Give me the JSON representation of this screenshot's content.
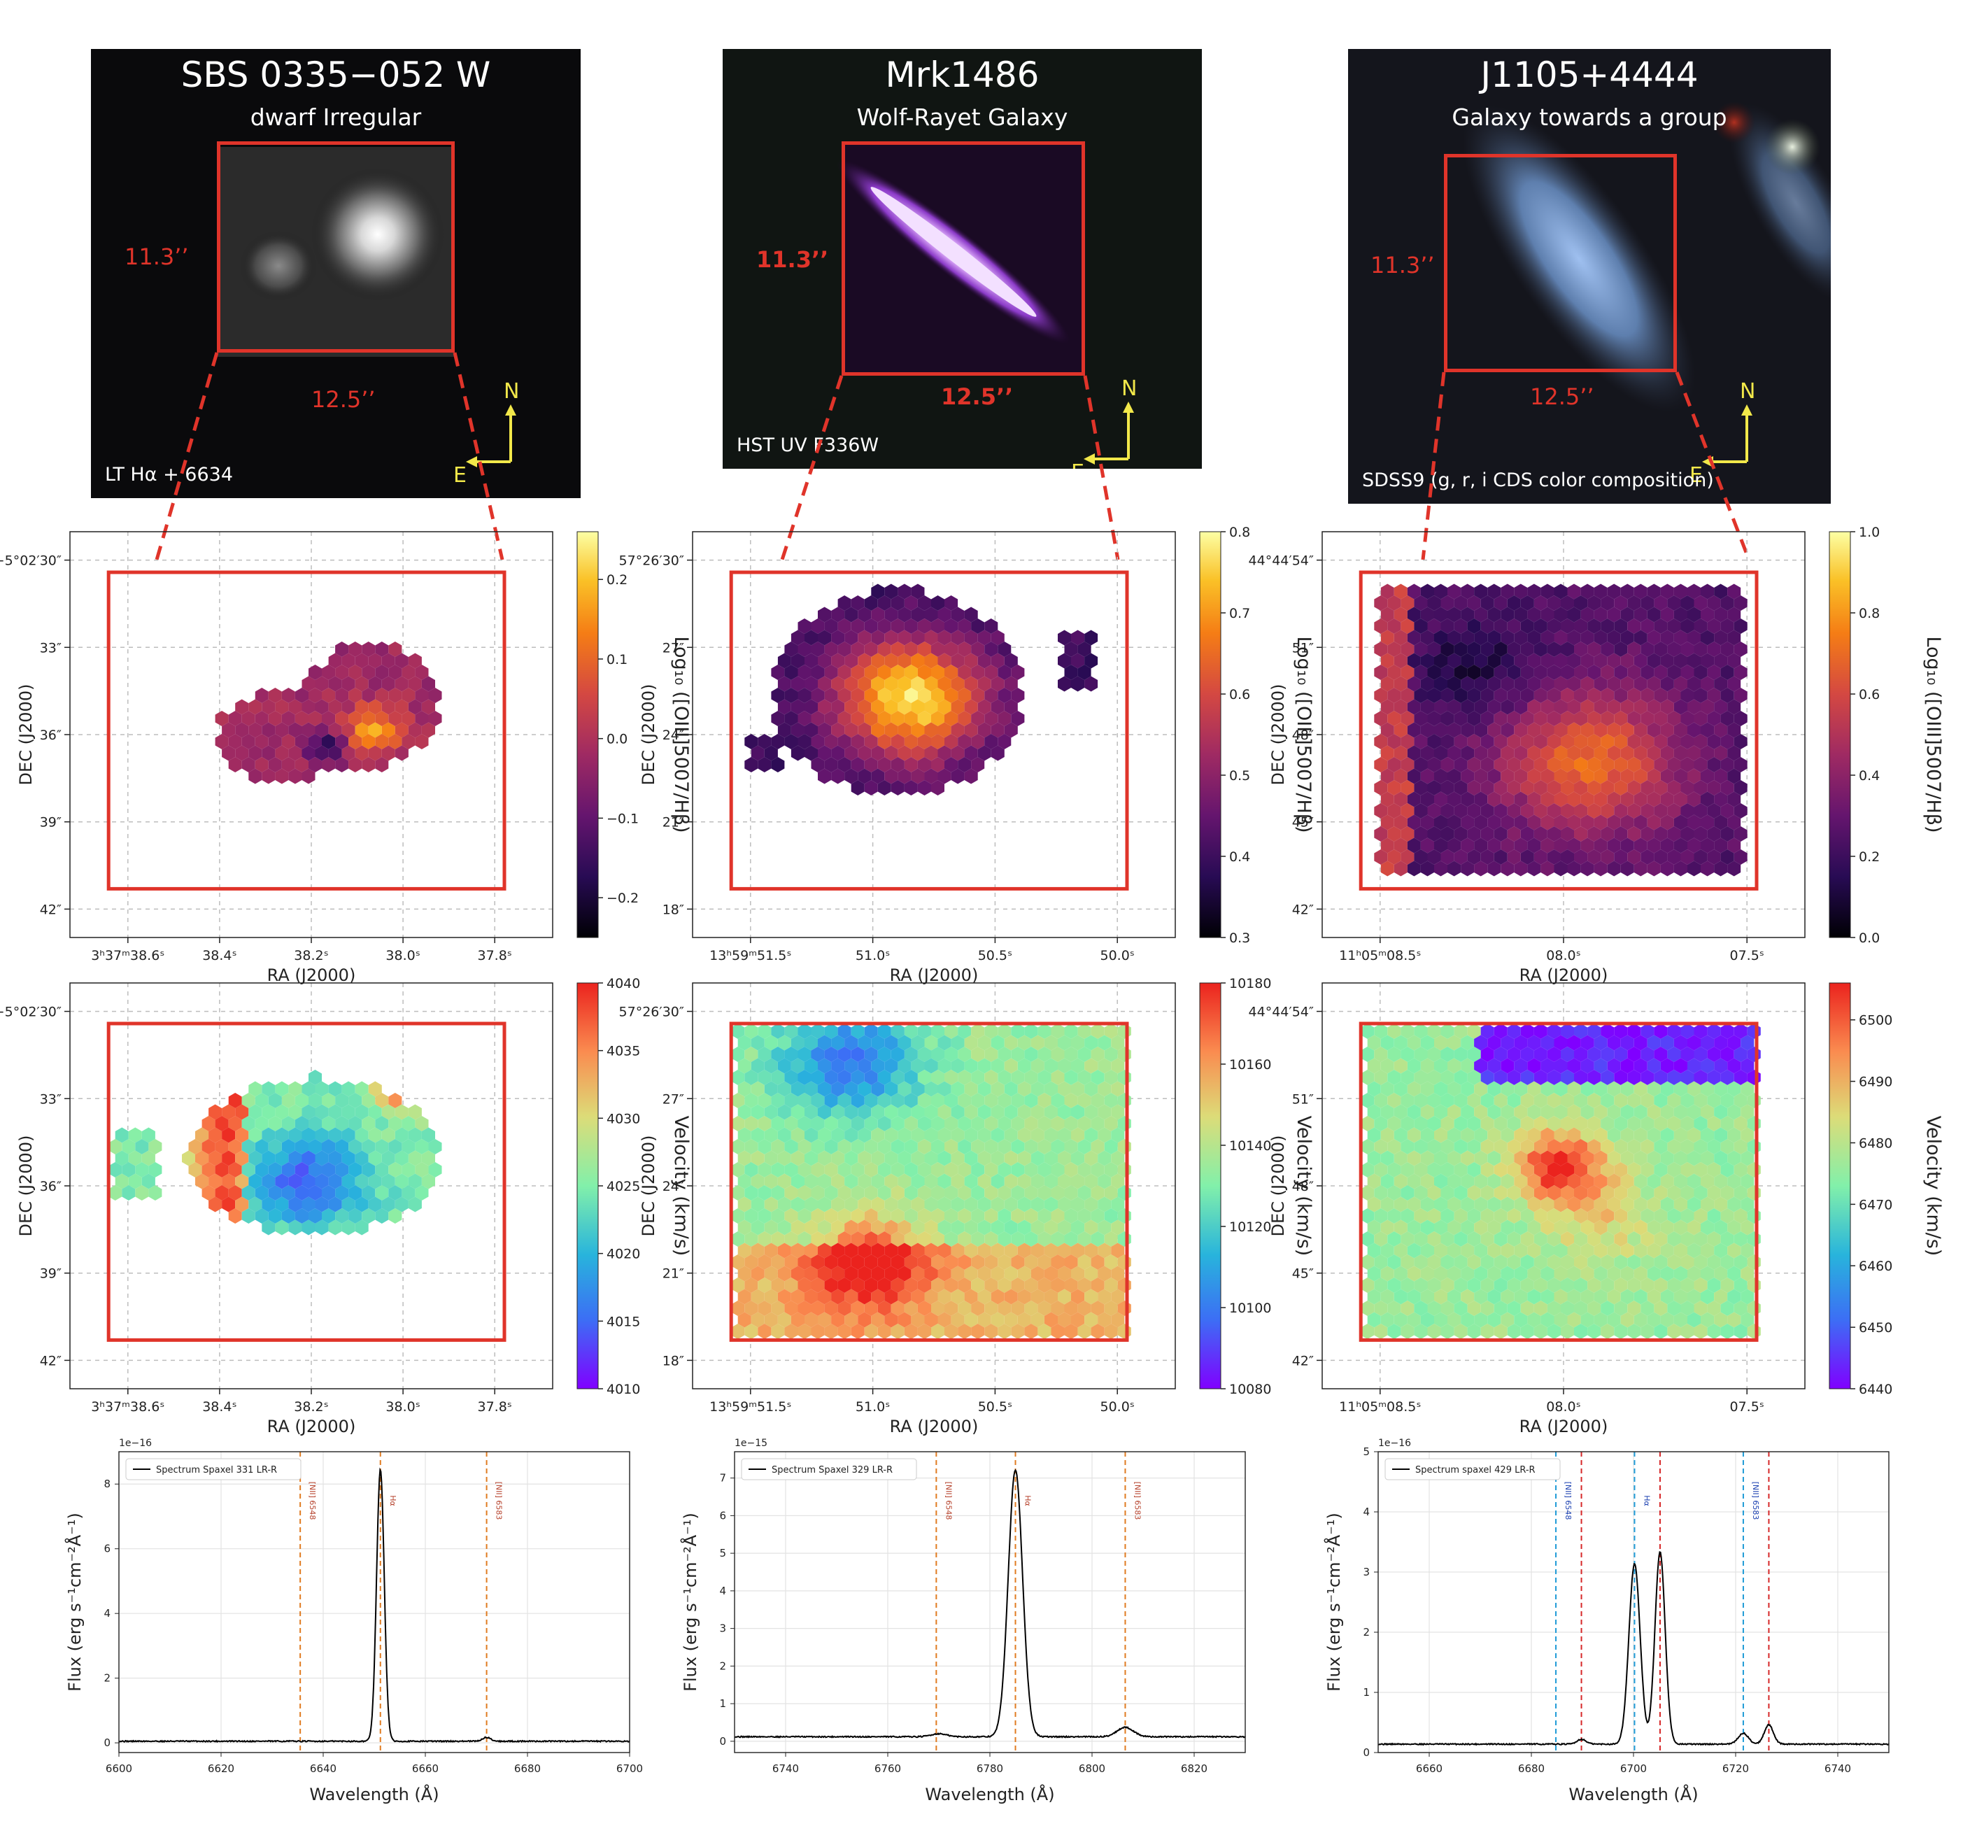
{
  "galaxies": [
    {
      "name": "SBS 0335−052 W",
      "type": "dwarf Irregular",
      "image_source": "LT Hα + 6634",
      "box_height_label": "11.3’’",
      "box_width_label": "12.5’’",
      "compass": {
        "north": "N",
        "east": "E"
      }
    },
    {
      "name": "Mrk1486",
      "type": "Wolf-Rayet Galaxy",
      "image_source": "HST UV F336W",
      "box_height_label": "11.3’’",
      "box_width_label": "12.5’’",
      "compass": {
        "north": "N",
        "east": "E"
      }
    },
    {
      "name": "J1105+4444",
      "type": "Galaxy towards a group",
      "image_source": "SDSS9 (g, r, i CDS color composition)",
      "box_height_label": "11.3’’",
      "box_width_label": "12.5’’",
      "compass": {
        "north": "N",
        "east": "E"
      }
    }
  ],
  "colors": {
    "box": "#e0342a",
    "spectrum": "#000000",
    "line_orange": "#e07b20",
    "line_red": "#d62728",
    "line_blue": "#1f9bd6"
  },
  "chart_data": [
    {
      "type": "heatmap",
      "panel": "ratio-map-1",
      "xlabel": "RA (J2000)",
      "ylabel": "DEC (J2000)",
      "xticks": [
        "3ʰ37ᵐ38.6ˢ",
        "38.4ˢ",
        "38.2ˢ",
        "38.0ˢ",
        "37.8ˢ"
      ],
      "yticks": [
        "−5°02′30″",
        "33″",
        "36″",
        "39″",
        "42″"
      ],
      "colorbar": {
        "label": "Log₁₀ ([OIII]5007/Hβ)",
        "ticks": [
          "−0.2",
          "−0.1",
          "0.0",
          "0.1",
          "0.2"
        ],
        "range": [
          -0.25,
          0.26
        ],
        "cmap": "inferno"
      },
      "grid": true
    },
    {
      "type": "heatmap",
      "panel": "ratio-map-2",
      "xlabel": "RA (J2000)",
      "ylabel": "DEC (J2000)",
      "xticks": [
        "13ʰ59ᵐ51.5ˢ",
        "51.0ˢ",
        "50.5ˢ",
        "50.0ˢ"
      ],
      "yticks": [
        "57°26′30″",
        "27″",
        "24″",
        "21″",
        "18″"
      ],
      "colorbar": {
        "label": "Log₁₀ ([OIII]5007/Hβ)",
        "ticks": [
          "0.3",
          "0.4",
          "0.5",
          "0.6",
          "0.7",
          "0.8"
        ],
        "range": [
          0.3,
          0.8
        ],
        "cmap": "inferno"
      },
      "grid": true
    },
    {
      "type": "heatmap",
      "panel": "ratio-map-3",
      "xlabel": "RA (J2000)",
      "ylabel": "DEC (J2000)",
      "xticks": [
        "11ʰ05ᵐ08.5ˢ",
        "08.0ˢ",
        "07.5ˢ"
      ],
      "yticks": [
        "44°44′54″",
        "51″",
        "48″",
        "45″",
        "42″"
      ],
      "colorbar": {
        "label": "Log₁₀ ([OIII]5007/Hβ)",
        "ticks": [
          "0.0",
          "0.2",
          "0.4",
          "0.6",
          "0.8",
          "1.0"
        ],
        "range": [
          0.0,
          1.0
        ],
        "cmap": "inferno"
      },
      "grid": true
    },
    {
      "type": "heatmap",
      "panel": "velocity-map-1",
      "xlabel": "RA (J2000)",
      "ylabel": "DEC (J2000)",
      "xticks": [
        "3ʰ37ᵐ38.6ˢ",
        "38.4ˢ",
        "38.2ˢ",
        "38.0ˢ",
        "37.8ˢ"
      ],
      "yticks": [
        "−5°02′30″",
        "33″",
        "36″",
        "39″",
        "42″"
      ],
      "colorbar": {
        "label": "Velocity (km/s)",
        "ticks": [
          "4010",
          "4015",
          "4020",
          "4025",
          "4030",
          "4035",
          "4040"
        ],
        "range": [
          4010,
          4040
        ],
        "cmap": "rainbow"
      },
      "grid": true
    },
    {
      "type": "heatmap",
      "panel": "velocity-map-2",
      "xlabel": "RA (J2000)",
      "ylabel": "DEC (J2000)",
      "xticks": [
        "13ʰ59ᵐ51.5ˢ",
        "51.0ˢ",
        "50.5ˢ",
        "50.0ˢ"
      ],
      "yticks": [
        "57°26′30″",
        "27″",
        "24″",
        "21″",
        "18″"
      ],
      "colorbar": {
        "label": "Velocity (km/s)",
        "ticks": [
          "10080",
          "10100",
          "10120",
          "10140",
          "10160",
          "10180"
        ],
        "range": [
          10080,
          10180
        ],
        "cmap": "rainbow"
      },
      "grid": true
    },
    {
      "type": "heatmap",
      "panel": "velocity-map-3",
      "xlabel": "RA (J2000)",
      "ylabel": "DEC (J2000)",
      "xticks": [
        "11ʰ05ᵐ08.5ˢ",
        "08.0ˢ",
        "07.5ˢ"
      ],
      "yticks": [
        "44°44′54″",
        "51″",
        "48″",
        "45″",
        "42″"
      ],
      "colorbar": {
        "label": "Velocity (km/s)",
        "ticks": [
          "6440",
          "6450",
          "6460",
          "6470",
          "6480",
          "6490",
          "6500"
        ],
        "range": [
          6440,
          6506
        ],
        "cmap": "rainbow"
      },
      "grid": true
    },
    {
      "type": "line",
      "panel": "spectrum-1",
      "xlabel": "Wavelength (Å)",
      "ylabel": "Flux (erg s⁻¹cm⁻²Å⁻¹)",
      "scale_label": "1e−16",
      "legend": "Spectrum Spaxel 331 LR-R",
      "xlim": [
        6600,
        6700
      ],
      "ylim": [
        -0.3,
        9.0
      ],
      "xticks": [
        6600,
        6620,
        6640,
        6660,
        6680,
        6700
      ],
      "yticks": [
        0,
        2,
        4,
        6,
        8
      ],
      "continuum": 0.05,
      "peaks": [
        {
          "center": 6651.2,
          "amp": 8.4,
          "sigma": 0.75
        },
        {
          "center": 6672.0,
          "amp": 0.12,
          "sigma": 0.8
        }
      ],
      "vlines": [
        {
          "x": 6635.5,
          "label": "[NII] 6548",
          "color": "orange"
        },
        {
          "x": 6651.2,
          "label": "Hα",
          "color": "orange"
        },
        {
          "x": 6672.0,
          "label": "[NII] 6583",
          "color": "orange"
        }
      ],
      "grid": true
    },
    {
      "type": "line",
      "panel": "spectrum-2",
      "xlabel": "Wavelength (Å)",
      "ylabel": "Flux (erg s⁻¹cm⁻²Å⁻¹)",
      "scale_label": "1e−15",
      "legend": "Spectrum Spaxel 329 LR-R",
      "xlim": [
        6730,
        6830
      ],
      "ylim": [
        -0.3,
        7.7
      ],
      "xticks": [
        6740,
        6760,
        6780,
        6800,
        6820
      ],
      "yticks": [
        0,
        1,
        2,
        3,
        4,
        5,
        6,
        7
      ],
      "continuum": 0.12,
      "peaks": [
        {
          "center": 6785.0,
          "amp": 7.1,
          "sigma": 1.4
        },
        {
          "center": 6806.5,
          "amp": 0.25,
          "sigma": 1.6
        },
        {
          "center": 6770.0,
          "amp": 0.08,
          "sigma": 1.5
        }
      ],
      "vlines": [
        {
          "x": 6769.5,
          "label": "[NII] 6548",
          "color": "orange"
        },
        {
          "x": 6785.0,
          "label": "Hα",
          "color": "orange"
        },
        {
          "x": 6806.5,
          "label": "[NII] 6583",
          "color": "orange"
        }
      ],
      "grid": true
    },
    {
      "type": "line",
      "panel": "spectrum-3",
      "xlabel": "Wavelength (Å)",
      "ylabel": "Flux (erg s⁻¹cm⁻²Å⁻¹)",
      "scale_label": "1e−16",
      "legend": "Spectrum spaxel 429 LR-R",
      "xlim": [
        6650,
        6750
      ],
      "ylim": [
        0,
        5
      ],
      "xticks": [
        6660,
        6680,
        6700,
        6720,
        6740
      ],
      "yticks": [
        0,
        1,
        2,
        3,
        4,
        5
      ],
      "continuum": 0.14,
      "peaks": [
        {
          "center": 6700.2,
          "amp": 3.0,
          "sigma": 1.1
        },
        {
          "center": 6705.2,
          "amp": 3.2,
          "sigma": 1.0
        },
        {
          "center": 6721.5,
          "amp": 0.18,
          "sigma": 1.0
        },
        {
          "center": 6726.5,
          "amp": 0.32,
          "sigma": 0.9
        },
        {
          "center": 6689.8,
          "amp": 0.08,
          "sigma": 0.9
        }
      ],
      "vlines": [
        {
          "x": 6684.8,
          "label": "[NII] 6548",
          "color": "blue"
        },
        {
          "x": 6689.8,
          "label": "",
          "color": "red"
        },
        {
          "x": 6700.2,
          "label": "Hα",
          "color": "blue"
        },
        {
          "x": 6705.2,
          "label": "",
          "color": "red"
        },
        {
          "x": 6721.5,
          "label": "[NII] 6583",
          "color": "blue"
        },
        {
          "x": 6726.5,
          "label": "",
          "color": "red"
        }
      ],
      "grid": true
    }
  ]
}
